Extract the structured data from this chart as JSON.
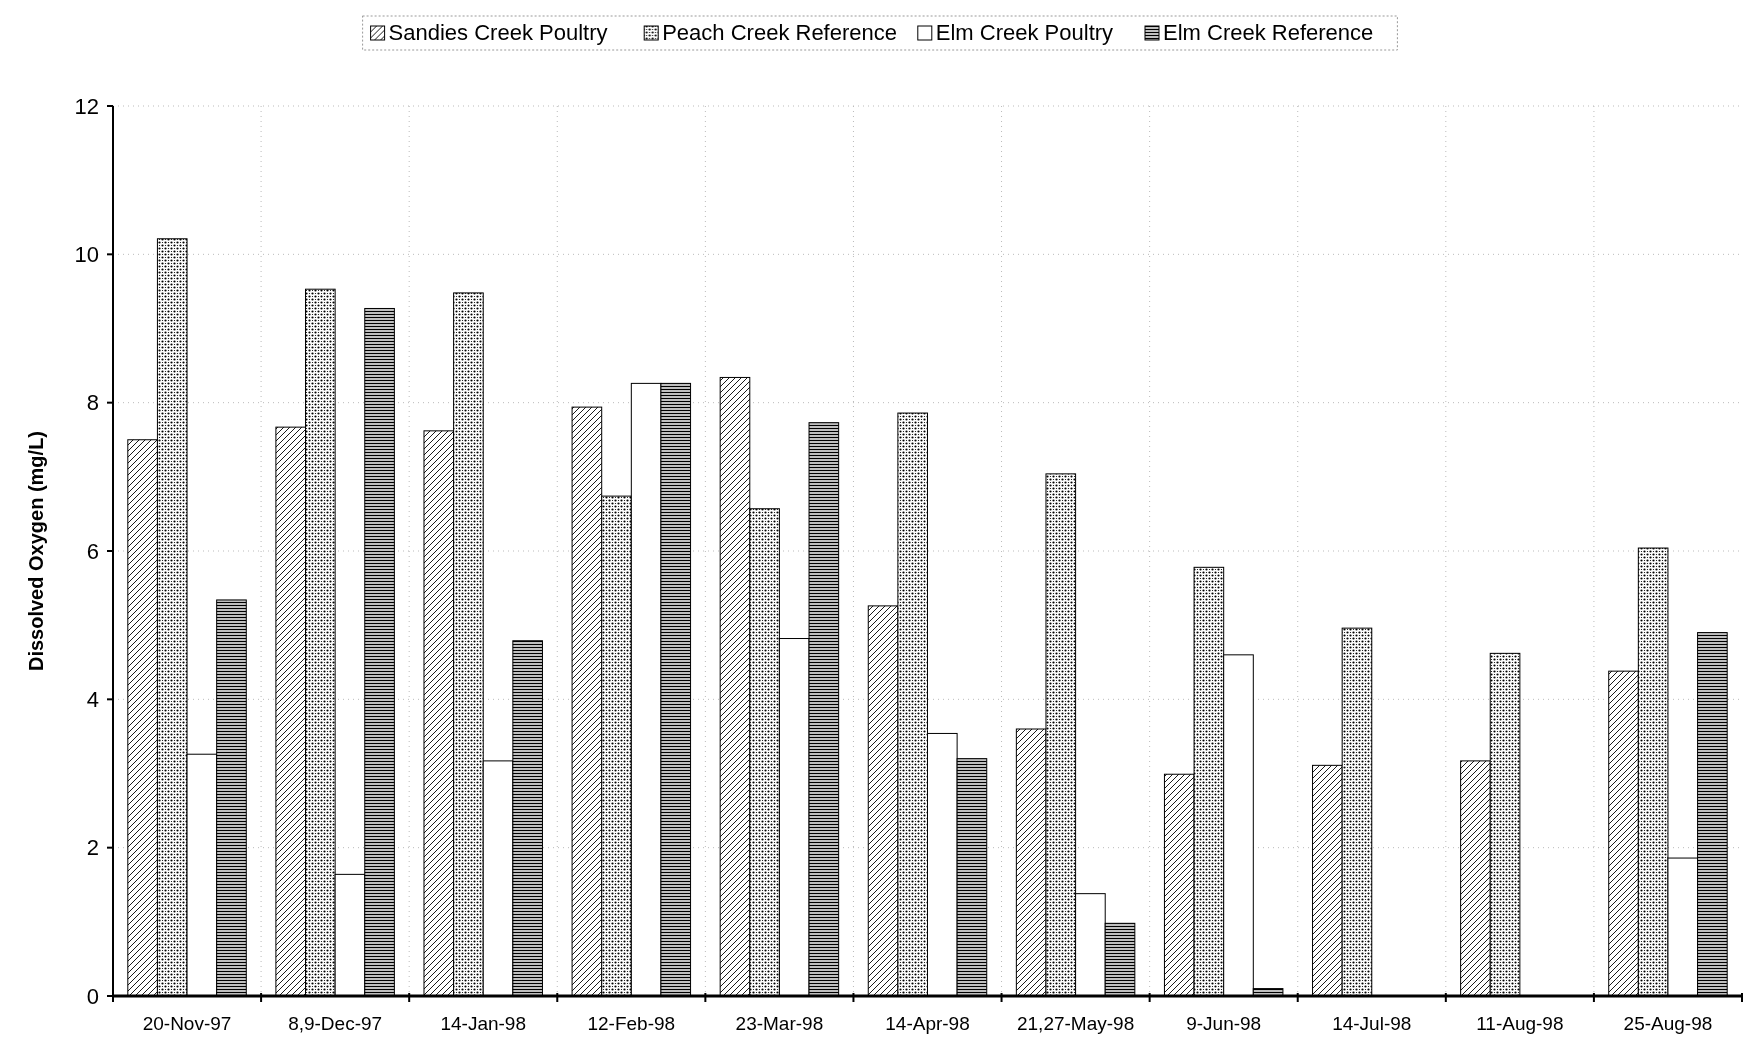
{
  "chart_data": {
    "type": "bar",
    "ylabel": "Dissolved Oxygen (mg/L)",
    "categories": [
      "20-Nov-97",
      "8,9-Dec-97",
      "14-Jan-98",
      "12-Feb-98",
      "23-Mar-98",
      "14-Apr-98",
      "21,27-May-98",
      "9-Jun-98",
      "14-Jul-98",
      "11-Aug-98",
      "25-Aug-98"
    ],
    "series": [
      {
        "name": "Sandies Creek Poultry",
        "color": "#000000",
        "values": [
          7.5,
          7.67,
          7.62,
          7.94,
          8.34,
          5.26,
          3.6,
          2.99,
          3.11,
          3.17,
          4.38
        ]
      },
      {
        "name": "Peach Creek Reference",
        "color": "#000000",
        "values": [
          10.21,
          9.53,
          9.48,
          6.74,
          6.57,
          7.86,
          7.04,
          5.78,
          4.96,
          4.62,
          6.04
        ]
      },
      {
        "name": "Elm Creek Poultry",
        "color": "#000000",
        "values": [
          3.26,
          1.64,
          3.17,
          8.26,
          4.82,
          3.54,
          1.38,
          4.6,
          null,
          null,
          1.86
        ]
      },
      {
        "name": "Elm Creek Reference",
        "color": "#000000",
        "values": [
          5.34,
          9.27,
          4.79,
          8.26,
          7.73,
          3.2,
          0.98,
          0.1,
          null,
          null,
          4.9
        ]
      }
    ],
    "ylim": [
      0,
      12
    ],
    "yticks": [
      0,
      2,
      4,
      6,
      8,
      10,
      12
    ],
    "grid": true,
    "legend": "top"
  }
}
